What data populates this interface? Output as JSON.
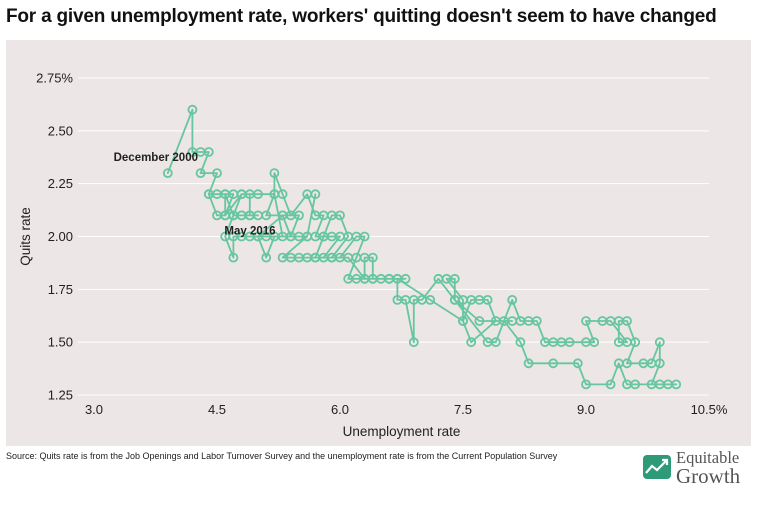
{
  "title": "For a given unemployment rate, workers' quitting doesn't seem to have changed",
  "source": "Source: Quits rate is from the Job Openings and Labor Turnover Survey and the unemployment rate is from the Current Population Survey",
  "brand": {
    "line1": "Equitable",
    "line2": "Growth",
    "icon": "growth-chart-icon"
  },
  "colors": {
    "series": "#66c6a0",
    "background": "#ece6e6",
    "grid": "#ffffff"
  },
  "chart_data": {
    "type": "line",
    "title": "For a given unemployment rate, workers' quitting doesn't seem to have changed",
    "xlabel": "Unemployment rate",
    "ylabel": "Quits rate",
    "xlim": [
      3.0,
      10.5
    ],
    "ylim": [
      1.25,
      2.75
    ],
    "x_ticks": [
      3.0,
      4.5,
      6.0,
      7.5,
      9.0,
      10.5
    ],
    "x_tick_labels": [
      "3.0",
      "4.5",
      "6.0",
      "7.5",
      "9.0",
      "10.5%"
    ],
    "y_ticks": [
      1.25,
      1.5,
      1.75,
      2.0,
      2.25,
      2.5,
      2.75
    ],
    "y_tick_labels": [
      "1.25",
      "1.50",
      "1.75",
      "2.00",
      "2.25",
      "2.50",
      "2.75%"
    ],
    "grid": "horizontal",
    "markers": "open-circle",
    "annotations": [
      {
        "text": "December 2000",
        "x": 3.9,
        "y": 2.3
      },
      {
        "text": "May 2016",
        "x": 4.7,
        "y": 2.1
      }
    ],
    "series": [
      {
        "values": [
          [
            3.9,
            2.3
          ],
          [
            4.2,
            2.6
          ],
          [
            4.2,
            2.4
          ],
          [
            4.3,
            2.4
          ],
          [
            4.4,
            2.4
          ],
          [
            4.3,
            2.3
          ],
          [
            4.5,
            2.3
          ],
          [
            4.4,
            2.2
          ],
          [
            4.7,
            2.2
          ],
          [
            4.6,
            2.1
          ],
          [
            4.8,
            2.2
          ],
          [
            5.0,
            2.2
          ],
          [
            5.2,
            2.2
          ],
          [
            5.1,
            2.1
          ],
          [
            5.3,
            2.1
          ],
          [
            5.0,
            2.0
          ],
          [
            5.1,
            2.0
          ],
          [
            5.3,
            2.0
          ],
          [
            5.2,
            2.2
          ],
          [
            5.2,
            2.3
          ],
          [
            5.3,
            2.2
          ],
          [
            5.4,
            2.1
          ],
          [
            5.6,
            2.2
          ],
          [
            5.7,
            2.1
          ],
          [
            5.8,
            2.1
          ],
          [
            5.7,
            2.0
          ],
          [
            5.8,
            2.0
          ],
          [
            5.9,
            2.0
          ],
          [
            6.0,
            2.0
          ],
          [
            5.8,
            1.9
          ],
          [
            5.7,
            1.9
          ],
          [
            5.8,
            2.0
          ],
          [
            5.9,
            2.1
          ],
          [
            6.0,
            2.1
          ],
          [
            6.1,
            2.0
          ],
          [
            5.9,
            1.9
          ],
          [
            6.0,
            1.9
          ],
          [
            6.2,
            2.0
          ],
          [
            6.3,
            2.0
          ],
          [
            6.2,
            1.9
          ],
          [
            6.1,
            1.8
          ],
          [
            6.2,
            1.8
          ],
          [
            6.3,
            1.8
          ],
          [
            6.3,
            1.9
          ],
          [
            6.4,
            1.9
          ],
          [
            6.4,
            1.8
          ],
          [
            6.6,
            1.8
          ],
          [
            6.8,
            1.8
          ],
          [
            6.7,
            1.8
          ],
          [
            7.1,
            1.7
          ],
          [
            7.5,
            1.6
          ],
          [
            7.6,
            1.7
          ],
          [
            7.7,
            1.7
          ],
          [
            7.8,
            1.7
          ],
          [
            7.9,
            1.6
          ],
          [
            7.6,
            1.5
          ],
          [
            7.5,
            1.6
          ],
          [
            7.5,
            1.7
          ],
          [
            7.3,
            1.8
          ],
          [
            7.4,
            1.8
          ],
          [
            7.4,
            1.7
          ],
          [
            7.8,
            1.5
          ],
          [
            7.9,
            1.5
          ],
          [
            8.1,
            1.7
          ],
          [
            8.2,
            1.6
          ],
          [
            8.3,
            1.6
          ],
          [
            8.4,
            1.6
          ],
          [
            8.5,
            1.5
          ],
          [
            8.6,
            1.5
          ],
          [
            8.7,
            1.5
          ],
          [
            8.8,
            1.5
          ],
          [
            9.0,
            1.5
          ],
          [
            9.1,
            1.5
          ],
          [
            9.0,
            1.6
          ],
          [
            9.2,
            1.6
          ],
          [
            9.3,
            1.6
          ],
          [
            9.5,
            1.5
          ],
          [
            9.4,
            1.5
          ],
          [
            9.4,
            1.6
          ],
          [
            9.5,
            1.6
          ],
          [
            9.6,
            1.5
          ],
          [
            9.5,
            1.4
          ],
          [
            9.7,
            1.4
          ],
          [
            9.8,
            1.4
          ],
          [
            9.9,
            1.5
          ],
          [
            9.9,
            1.4
          ],
          [
            9.8,
            1.3
          ],
          [
            9.9,
            1.3
          ],
          [
            10.0,
            1.3
          ],
          [
            10.1,
            1.3
          ],
          [
            9.6,
            1.3
          ],
          [
            9.5,
            1.3
          ],
          [
            9.4,
            1.4
          ],
          [
            9.3,
            1.3
          ],
          [
            9.0,
            1.3
          ],
          [
            8.9,
            1.4
          ],
          [
            8.6,
            1.4
          ],
          [
            8.3,
            1.4
          ],
          [
            8.2,
            1.5
          ],
          [
            8.0,
            1.6
          ],
          [
            8.1,
            1.6
          ],
          [
            7.7,
            1.6
          ],
          [
            7.4,
            1.7
          ],
          [
            7.2,
            1.8
          ],
          [
            7.0,
            1.7
          ],
          [
            6.9,
            1.7
          ],
          [
            6.9,
            1.5
          ],
          [
            6.8,
            1.7
          ],
          [
            6.7,
            1.7
          ],
          [
            6.7,
            1.8
          ],
          [
            6.6,
            1.8
          ],
          [
            6.5,
            1.8
          ],
          [
            6.4,
            1.8
          ],
          [
            6.3,
            1.8
          ],
          [
            6.1,
            1.9
          ],
          [
            5.9,
            1.9
          ],
          [
            5.7,
            1.9
          ],
          [
            5.6,
            1.9
          ],
          [
            5.5,
            1.9
          ],
          [
            5.4,
            1.9
          ],
          [
            5.3,
            1.9
          ],
          [
            5.6,
            2.0
          ],
          [
            5.7,
            2.2
          ],
          [
            5.6,
            2.0
          ],
          [
            5.5,
            2.0
          ],
          [
            5.4,
            2.0
          ],
          [
            5.5,
            2.1
          ],
          [
            5.3,
            2.1
          ],
          [
            5.4,
            2.0
          ],
          [
            5.2,
            2.0
          ],
          [
            5.1,
            1.9
          ],
          [
            5.0,
            2.0
          ],
          [
            4.9,
            2.0
          ],
          [
            4.8,
            2.0
          ],
          [
            4.7,
            2.0
          ],
          [
            4.7,
            1.9
          ],
          [
            4.6,
            2.0
          ],
          [
            4.7,
            2.1
          ],
          [
            4.8,
            2.2
          ],
          [
            4.9,
            2.2
          ],
          [
            4.9,
            2.1
          ],
          [
            4.8,
            2.1
          ],
          [
            5.0,
            2.1
          ],
          [
            4.9,
            2.1
          ],
          [
            4.8,
            2.1
          ],
          [
            4.7,
            2.1
          ],
          [
            4.6,
            2.2
          ],
          [
            4.5,
            2.2
          ],
          [
            4.4,
            2.2
          ],
          [
            4.5,
            2.1
          ],
          [
            4.6,
            2.1
          ],
          [
            4.6,
            2.2
          ],
          [
            4.7,
            2.1
          ]
        ]
      }
    ]
  }
}
